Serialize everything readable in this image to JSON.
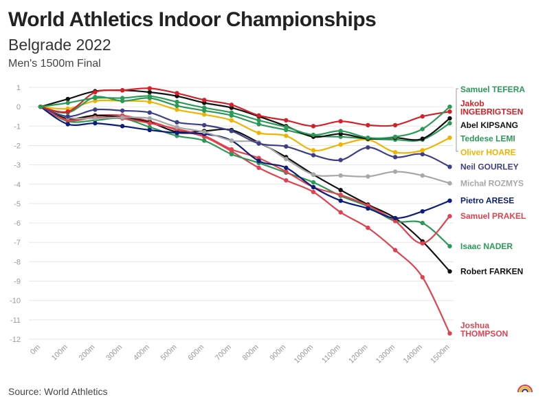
{
  "title": "World Athletics Indoor Championships",
  "subtitle": "Belgrade 2022",
  "subsubtitle": "Men's 1500m Final",
  "source": "Source: World Athletics",
  "chart_data": {
    "type": "line",
    "title": "World Athletics Indoor Championships",
    "subtitle": "Belgrade 2022",
    "xlabel": "",
    "ylabel": "",
    "ylim": [
      -12,
      1
    ],
    "yticks": [
      1,
      0,
      -1,
      -2,
      -3,
      -4,
      -5,
      -6,
      -7,
      -8,
      -9,
      -10,
      -11,
      -12
    ],
    "grid": true,
    "categories": [
      "0m",
      "100m",
      "200m",
      "300m",
      "400m",
      "500m",
      "600m",
      "700m",
      "800m",
      "900m",
      "1000m",
      "1100m",
      "1200m",
      "1300m",
      "1400m",
      "1500m"
    ],
    "series": [
      {
        "name": "Samuel TEFERA",
        "color": "#2a9a56",
        "values": [
          0,
          0.2,
          0.45,
          0.45,
          0.55,
          0.25,
          -0.05,
          -0.3,
          -0.7,
          -1.05,
          -1.45,
          -1.25,
          -1.6,
          -1.55,
          -1.15,
          0.0
        ]
      },
      {
        "name": "Jakob INGEBRIGTSEN",
        "color": "#d42027",
        "values": [
          0,
          -0.25,
          0.75,
          0.85,
          0.95,
          0.7,
          0.35,
          0.1,
          -0.45,
          -0.7,
          -1.0,
          -0.75,
          -0.95,
          -0.95,
          -0.5,
          -0.25
        ]
      },
      {
        "name": "Abel KIPSANG",
        "color": "#111111",
        "values": [
          0,
          0.4,
          0.8,
          0.85,
          0.75,
          0.55,
          0.2,
          -0.05,
          -0.5,
          -1.0,
          -1.55,
          -1.4,
          -1.65,
          -1.6,
          -1.65,
          -0.6
        ]
      },
      {
        "name": "Teddese LEMI",
        "color": "#2a9a56",
        "values": [
          0,
          -0.3,
          0.5,
          0.3,
          0.45,
          0.05,
          -0.2,
          -0.45,
          -0.9,
          -1.2,
          -1.5,
          -1.55,
          -1.65,
          -1.7,
          -1.7,
          -0.85
        ]
      },
      {
        "name": "Oliver HOARE",
        "color": "#f0b400",
        "values": [
          0,
          -0.1,
          0.3,
          0.3,
          0.25,
          -0.15,
          -0.4,
          -0.7,
          -1.35,
          -1.5,
          -2.25,
          -1.95,
          -1.7,
          -2.35,
          -2.25,
          -1.6
        ]
      },
      {
        "name": "Neil GOURLEY",
        "color": "#3d3f86",
        "values": [
          0,
          -0.5,
          -0.15,
          -0.2,
          -0.3,
          -0.8,
          -0.95,
          -1.25,
          -1.9,
          -2.05,
          -2.5,
          -2.75,
          -2.1,
          -2.6,
          -2.45,
          -3.1
        ]
      },
      {
        "name": "Michał ROZMYS",
        "color": "#a8a8a8",
        "values": [
          0,
          -0.55,
          -0.6,
          -0.55,
          -0.6,
          -1.05,
          -1.3,
          -1.75,
          -1.85,
          -2.7,
          -3.5,
          -3.55,
          -3.6,
          -3.35,
          -3.55,
          -3.95
        ]
      },
      {
        "name": "Pietro ARESE",
        "color": "#0c1e7a",
        "values": [
          0,
          -0.9,
          -0.85,
          -1.0,
          -1.2,
          -1.35,
          -1.4,
          -1.75,
          -2.8,
          -3.15,
          -4.15,
          -4.85,
          -5.25,
          -5.75,
          -5.4,
          -4.85
        ]
      },
      {
        "name": "Samuel PRAKEL",
        "color": "#e04250",
        "values": [
          0,
          -0.7,
          -0.55,
          -0.6,
          -0.85,
          -1.15,
          -1.5,
          -2.2,
          -2.65,
          -3.35,
          -4.15,
          -4.55,
          -5.1,
          -5.9,
          -7.05,
          -5.65
        ]
      },
      {
        "name": "Isaac NADER",
        "color": "#2a9a56",
        "values": [
          0,
          -0.75,
          -0.7,
          -0.6,
          -1.05,
          -1.5,
          -1.75,
          -2.45,
          -2.9,
          -3.4,
          -3.9,
          -4.6,
          -5.15,
          -5.9,
          -6.0,
          -7.2
        ]
      },
      {
        "name": "Robert FARKEN",
        "color": "#111111",
        "values": [
          0,
          -0.6,
          -0.45,
          -0.55,
          -0.8,
          -1.3,
          -1.25,
          -1.2,
          -1.85,
          -2.6,
          -3.5,
          -4.3,
          -5.05,
          -5.75,
          -6.95,
          -8.5
        ]
      },
      {
        "name": "Joshua THOMPSON",
        "color": "#e04250",
        "values": [
          0,
          -0.65,
          -0.45,
          -0.45,
          -0.75,
          -1.2,
          -1.55,
          -2.3,
          -3.15,
          -3.8,
          -4.4,
          -5.45,
          -6.25,
          -7.4,
          -8.8,
          -11.7
        ]
      }
    ],
    "labels": [
      {
        "lines": [
          "Samuel TEFERA"
        ],
        "color": "#2a9a56",
        "y": 0.9
      },
      {
        "lines": [
          "Jakob",
          "INGEBRIGTSEN"
        ],
        "color": "#d42027",
        "y": -0.05
      },
      {
        "lines": [
          "Abel KIPSANG"
        ],
        "color": "#111111",
        "y": -0.95
      },
      {
        "lines": [
          "Teddese LEMI"
        ],
        "color": "#2a9a56",
        "y": -1.65
      },
      {
        "lines": [
          "Oliver HOARE"
        ],
        "color": "#f0b400",
        "y": -2.35
      },
      {
        "lines": [
          "Neil GOURLEY"
        ],
        "color": "#3d3f86",
        "y": -3.1
      },
      {
        "lines": [
          "Michał ROZMYS"
        ],
        "color": "#a8a8a8",
        "y": -3.95
      },
      {
        "lines": [
          "Pietro ARESE"
        ],
        "color": "#0c1e7a",
        "y": -4.85
      },
      {
        "lines": [
          "Samuel PRAKEL"
        ],
        "color": "#e04250",
        "y": -5.65
      },
      {
        "lines": [
          "Isaac NADER"
        ],
        "color": "#2a9a56",
        "y": -7.2
      },
      {
        "lines": [
          "Robert FARKEN"
        ],
        "color": "#111111",
        "y": -8.5
      },
      {
        "lines": [
          "Joshua",
          "THOMPSON"
        ],
        "color": "#e04250",
        "y": -11.5
      }
    ],
    "bracket_color": "#999999",
    "gridline_color": "#e6e6e6",
    "tick_color": "#888888",
    "axis_label_color": "#999999"
  }
}
